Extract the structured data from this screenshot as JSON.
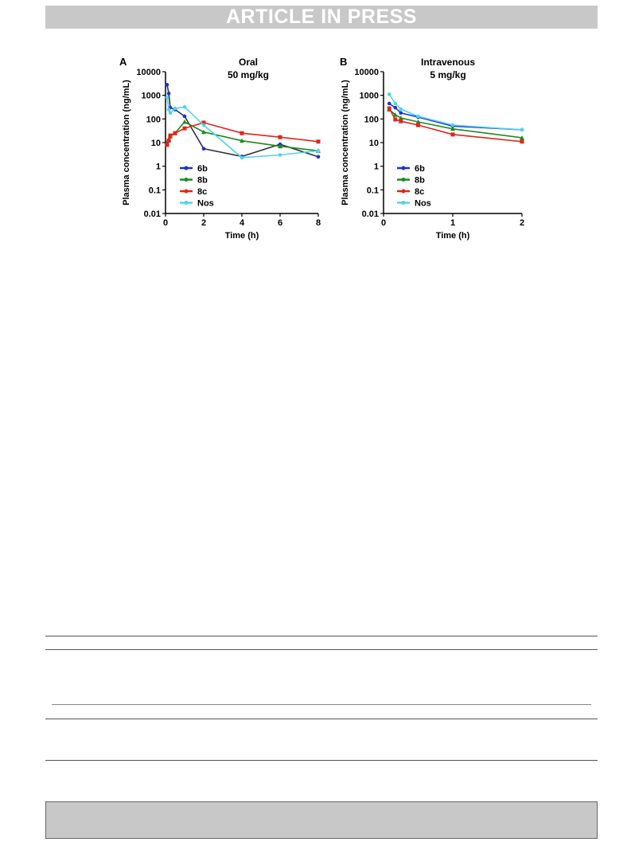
{
  "header": {
    "banner_text": "ARTICLE IN PRESS"
  },
  "colors": {
    "6b": "#1c2fd6",
    "8b": "#1f8a1f",
    "8c": "#e0251b",
    "Nos": "#4fd4e6",
    "line_6b_A": "#333344",
    "banner": "#c8c8c8"
  },
  "chart_data": [
    {
      "type": "line",
      "panel_label": "A",
      "title": "Oral",
      "subtitle": "50 mg/kg",
      "xlabel": "Time (h)",
      "ylabel": "Plasma concentration (ng/mL)",
      "yscale": "log",
      "xlim": [
        0,
        8
      ],
      "ylim": [
        0.01,
        10000
      ],
      "xticks": [
        0,
        2,
        4,
        6,
        8
      ],
      "yticks": [
        "0.01",
        "0.1",
        "1",
        "10",
        "100",
        "1000",
        "10000"
      ],
      "legend_position": "lower-left",
      "series": [
        {
          "name": "6b",
          "x": [
            0.083,
            0.17,
            0.25,
            0.5,
            1,
            2,
            4,
            6,
            8
          ],
          "y": [
            2800,
            1200,
            300,
            250,
            130,
            5.5,
            2.6,
            8.5,
            2.5
          ]
        },
        {
          "name": "8b",
          "x": [
            0.083,
            0.17,
            0.25,
            0.5,
            1,
            2,
            4,
            6,
            8
          ],
          "y": [
            10,
            14,
            18,
            25,
            75,
            28,
            12,
            7,
            4.5
          ]
        },
        {
          "name": "8c",
          "x": [
            0.083,
            0.17,
            0.25,
            0.5,
            1,
            2,
            4,
            6,
            8
          ],
          "y": [
            8,
            12,
            20,
            25,
            40,
            70,
            25,
            17,
            11
          ]
        },
        {
          "name": "Nos",
          "x": [
            0.083,
            0.17,
            0.25,
            0.5,
            1,
            2,
            4,
            6,
            8
          ],
          "y": [
            800,
            250,
            180,
            280,
            320,
            55,
            2.3,
            3,
            4.5
          ]
        }
      ]
    },
    {
      "type": "line",
      "panel_label": "B",
      "title": "Intravenous",
      "subtitle": "5 mg/kg",
      "xlabel": "Time (h)",
      "ylabel": "Plasma concentration (ng/mL)",
      "yscale": "log",
      "xlim": [
        0,
        2
      ],
      "ylim": [
        0.01,
        10000
      ],
      "xticks": [
        0,
        1,
        2
      ],
      "yticks": [
        "0.01",
        "0.1",
        "1",
        "10",
        "100",
        "1000",
        "10000"
      ],
      "legend_position": "lower-left",
      "series": [
        {
          "name": "6b",
          "x": [
            0.083,
            0.17,
            0.25,
            0.5,
            1,
            2
          ],
          "y": [
            450,
            300,
            180,
            120,
            50,
            35
          ]
        },
        {
          "name": "8b",
          "x": [
            0.083,
            0.17,
            0.25,
            0.5,
            1,
            2
          ],
          "y": [
            250,
            150,
            110,
            75,
            38,
            16
          ]
        },
        {
          "name": "8c",
          "x": [
            0.083,
            0.17,
            0.25,
            0.5,
            1,
            2
          ],
          "y": [
            280,
            95,
            80,
            55,
            22,
            11
          ]
        },
        {
          "name": "Nos",
          "x": [
            0.083,
            0.17,
            0.25,
            0.5,
            1,
            2
          ],
          "y": [
            1100,
            450,
            260,
            130,
            55,
            35
          ]
        }
      ]
    }
  ]
}
